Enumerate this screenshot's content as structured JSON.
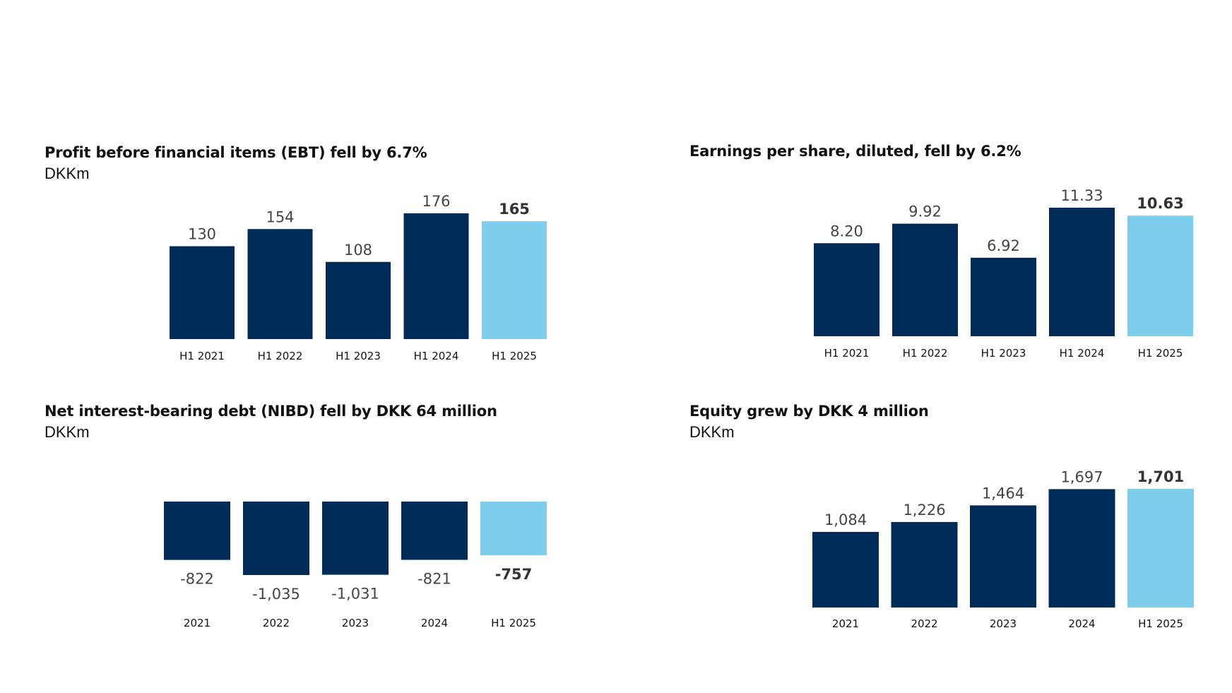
{
  "colors": {
    "historic": "#002c59",
    "current": "#7fcdec"
  },
  "chart_data": [
    {
      "id": "ebt",
      "type": "bar",
      "title": "Profit before financial items (EBT) fell by 6.7%",
      "unit": "DKKm",
      "categories": [
        "H1 2021",
        "H1 2022",
        "H1 2023",
        "H1 2024",
        "H1 2025"
      ],
      "values": [
        130,
        154,
        108,
        176,
        165
      ],
      "value_labels": [
        "130",
        "154",
        "108",
        "176",
        "165"
      ],
      "highlight_index": 4
    },
    {
      "id": "eps",
      "type": "bar",
      "title": "Earnings per share, diluted, fell by 6.2%",
      "unit": "",
      "categories": [
        "H1 2021",
        "H1 2022",
        "H1 2023",
        "H1 2024",
        "H1 2025"
      ],
      "values": [
        8.2,
        9.92,
        6.92,
        11.33,
        10.63
      ],
      "value_labels": [
        "8.20",
        "9.92",
        "6.92",
        "11.33",
        "10.63"
      ],
      "highlight_index": 4
    },
    {
      "id": "nibd",
      "type": "bar",
      "title": "Net interest-bearing debt (NIBD) fell by DKK 64 million",
      "unit": "DKKm",
      "categories": [
        "2021",
        "2022",
        "2023",
        "2024",
        "H1 2025"
      ],
      "values": [
        -822,
        -1035,
        -1031,
        -821,
        -757
      ],
      "value_labels": [
        "-822",
        "-1,035",
        "-1,031",
        "-821",
        "-757"
      ],
      "highlight_index": 4
    },
    {
      "id": "equity",
      "type": "bar",
      "title": "Equity grew by DKK 4 million",
      "unit": "DKKm",
      "categories": [
        "2021",
        "2022",
        "2023",
        "2024",
        "H1 2025"
      ],
      "values": [
        1084,
        1226,
        1464,
        1697,
        1701
      ],
      "value_labels": [
        "1,084",
        "1,226",
        "1,464",
        "1,697",
        "1,701"
      ],
      "highlight_index": 4
    }
  ]
}
